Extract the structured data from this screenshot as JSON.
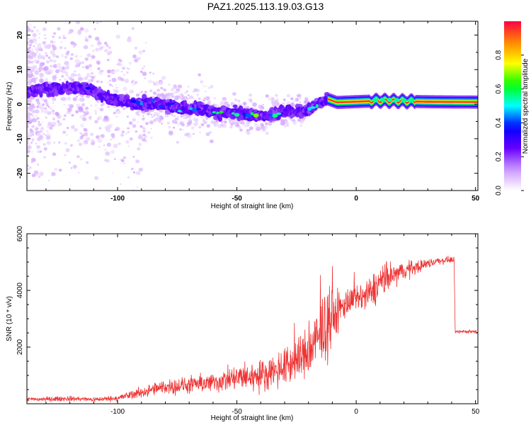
{
  "title": "PAZ1.2025.113.19.03.G13",
  "chart_data": [
    {
      "type": "heatmap",
      "xlabel": "Height of straight line (km)",
      "ylabel": "Frequency (Hz)",
      "xlim": [
        -138,
        51
      ],
      "ylim": [
        -25,
        24
      ],
      "xticks": [
        -100,
        -50,
        0,
        50
      ],
      "yticks": [
        -20,
        -10,
        0,
        10,
        20
      ],
      "colorbar": {
        "label": "Normalized spectral amplitude",
        "range": [
          0,
          1
        ],
        "ticks": [
          "0.0",
          "0.2",
          "0.4",
          "0.6",
          "0.8"
        ],
        "colormap": [
          "#ffffff",
          "#cc99ff",
          "#6600ff",
          "#0000ff",
          "#00ffff",
          "#00ff00",
          "#ffff00",
          "#ff8800",
          "#ff0044"
        ]
      },
      "ridge": [
        {
          "x": -135,
          "y": 4,
          "a": 0.3
        },
        {
          "x": -125,
          "y": 4.5,
          "a": 0.45
        },
        {
          "x": -115,
          "y": 5,
          "a": 0.35
        },
        {
          "x": -105,
          "y": 2,
          "a": 0.35
        },
        {
          "x": -95,
          "y": 0.5,
          "a": 0.4
        },
        {
          "x": -85,
          "y": 0,
          "a": 0.45
        },
        {
          "x": -75,
          "y": -1,
          "a": 0.5
        },
        {
          "x": -65,
          "y": -1.5,
          "a": 0.55
        },
        {
          "x": -55,
          "y": -2.5,
          "a": 0.6
        },
        {
          "x": -45,
          "y": -3,
          "a": 0.65
        },
        {
          "x": -38,
          "y": -3.5,
          "a": 0.6
        },
        {
          "x": -30,
          "y": -2,
          "a": 0.65
        },
        {
          "x": -20,
          "y": -2,
          "a": 0.6
        },
        {
          "x": -12,
          "y": 1.5,
          "a": 0.7
        },
        {
          "x": -8,
          "y": 0.5,
          "a": 0.95
        },
        {
          "x": 10,
          "y": 1,
          "a": 0.95
        },
        {
          "x": 30,
          "y": 0.7,
          "a": 0.95
        },
        {
          "x": 50,
          "y": 0.6,
          "a": 0.95
        }
      ]
    },
    {
      "type": "line",
      "xlabel": "Height of straight line (km)",
      "ylabel": "SNR (10 * v/v)",
      "xlim": [
        -138,
        51
      ],
      "ylim": [
        0,
        6000
      ],
      "xticks": [
        -100,
        -50,
        0,
        50
      ],
      "yticks": [
        2000,
        4000,
        6000
      ],
      "color": "#ee3333",
      "envelope": [
        {
          "x": -138,
          "y": 150,
          "noise": 120
        },
        {
          "x": -120,
          "y": 180,
          "noise": 140
        },
        {
          "x": -110,
          "y": 150,
          "noise": 120
        },
        {
          "x": -100,
          "y": 200,
          "noise": 160
        },
        {
          "x": -90,
          "y": 400,
          "noise": 300
        },
        {
          "x": -80,
          "y": 600,
          "noise": 400
        },
        {
          "x": -70,
          "y": 650,
          "noise": 450
        },
        {
          "x": -60,
          "y": 750,
          "noise": 500
        },
        {
          "x": -50,
          "y": 900,
          "noise": 700
        },
        {
          "x": -40,
          "y": 1000,
          "noise": 800
        },
        {
          "x": -30,
          "y": 1300,
          "noise": 1000
        },
        {
          "x": -20,
          "y": 1800,
          "noise": 1400
        },
        {
          "x": -15,
          "y": 2400,
          "noise": 1800
        },
        {
          "x": -10,
          "y": 3000,
          "noise": 1500
        },
        {
          "x": -5,
          "y": 3500,
          "noise": 800
        },
        {
          "x": 0,
          "y": 3700,
          "noise": 600
        },
        {
          "x": 5,
          "y": 3800,
          "noise": 900
        },
        {
          "x": 10,
          "y": 4300,
          "noise": 900
        },
        {
          "x": 20,
          "y": 4700,
          "noise": 500
        },
        {
          "x": 30,
          "y": 4950,
          "noise": 250
        },
        {
          "x": 35,
          "y": 5050,
          "noise": 200
        },
        {
          "x": 41,
          "y": 5100,
          "noise": 150
        },
        {
          "x": 41.5,
          "y": 2550,
          "noise": 100
        },
        {
          "x": 51,
          "y": 2550,
          "noise": 80
        }
      ]
    }
  ]
}
